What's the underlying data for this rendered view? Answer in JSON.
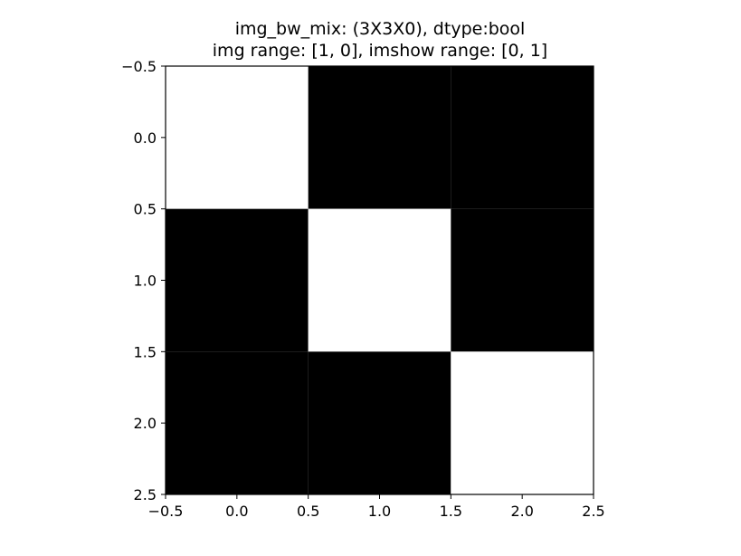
{
  "chart_data": {
    "type": "heatmap",
    "title_lines": [
      "img_bw_mix: (3X3X0), dtype:bool",
      "img range: [1, 0], imshow range: [0, 1]"
    ],
    "colormap": "gray",
    "colors": {
      "true": "#ffffff",
      "false": "#000000"
    },
    "matrix": [
      [
        1,
        0,
        0
      ],
      [
        0,
        1,
        0
      ],
      [
        0,
        0,
        1
      ]
    ],
    "xlim": [
      -0.5,
      2.5
    ],
    "ylim": [
      2.5,
      -0.5
    ],
    "y_inverted": true,
    "xticks": [
      -0.5,
      0.0,
      0.5,
      1.0,
      1.5,
      2.0,
      2.5
    ],
    "yticks": [
      -0.5,
      0.0,
      0.5,
      1.0,
      1.5,
      2.0,
      2.5
    ],
    "xtick_labels": [
      "−0.5",
      "0.0",
      "0.5",
      "1.0",
      "1.5",
      "2.0",
      "2.5"
    ],
    "ytick_labels": [
      "−0.5",
      "0.0",
      "0.5",
      "1.0",
      "1.5",
      "2.0",
      "2.5"
    ],
    "grid": false,
    "xlabel": "",
    "ylabel": ""
  }
}
